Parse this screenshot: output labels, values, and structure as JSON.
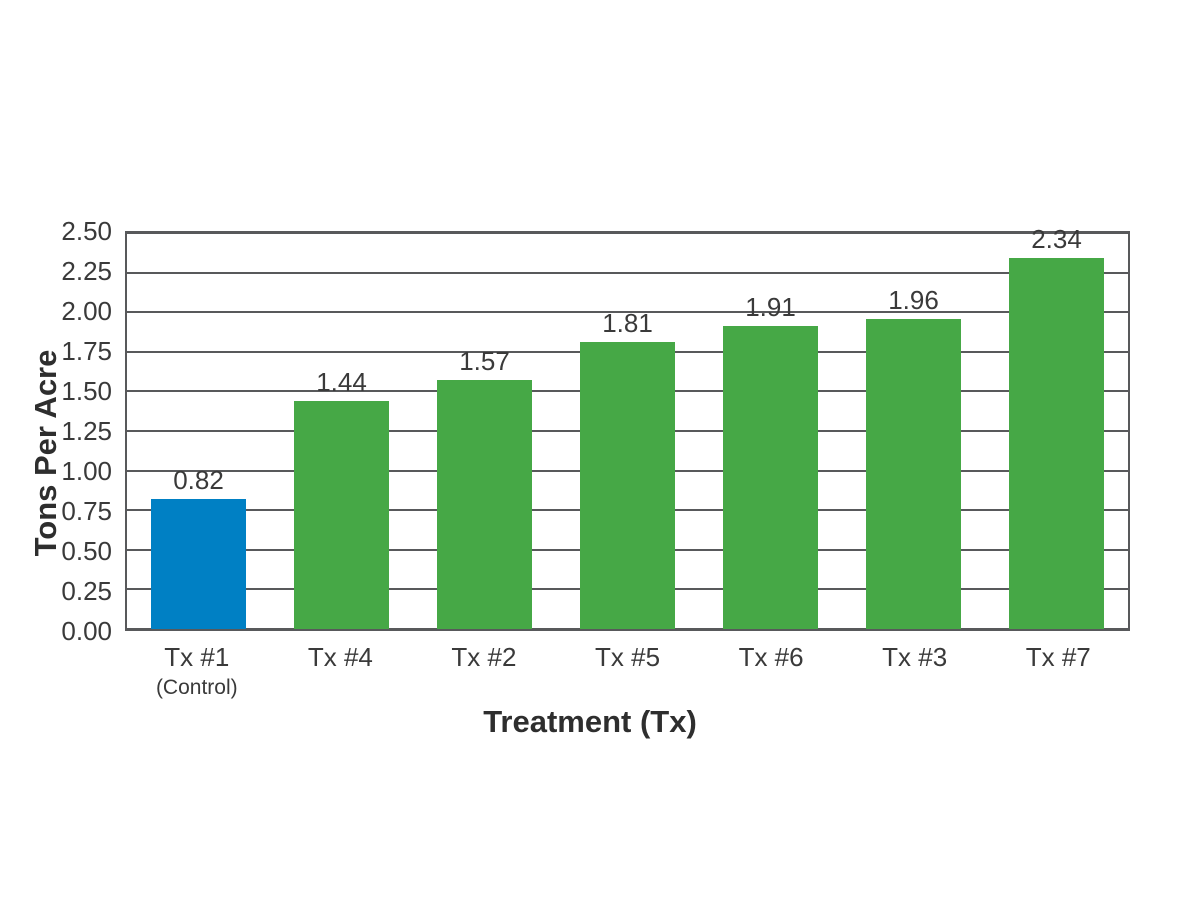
{
  "colors": {
    "bar_green": "#46A846",
    "bar_blue": "#0080C4",
    "grid": "#58595B",
    "tick_text": "#3A3A3A",
    "title_text": "#2E2E2E",
    "background": "#FFFFFF"
  },
  "chart_data": {
    "type": "bar",
    "title": "",
    "xlabel": "Treatment (Tx)",
    "ylabel": "Tons Per Acre",
    "ylim": [
      0,
      2.5
    ],
    "y_tick_step": 0.25,
    "y_tick_labels": [
      "0.00",
      "0.25",
      "0.50",
      "0.75",
      "1.00",
      "1.25",
      "1.50",
      "1.75",
      "2.00",
      "2.25",
      "2.50"
    ],
    "categories": [
      "Tx #1",
      "Tx #4",
      "Tx #2",
      "Tx #5",
      "Tx #6",
      "Tx #3",
      "Tx #7"
    ],
    "category_sublabels": [
      "(Control)",
      "",
      "",
      "",
      "",
      "",
      ""
    ],
    "values": [
      0.82,
      1.44,
      1.57,
      1.81,
      1.91,
      1.96,
      2.34
    ],
    "value_labels": [
      "0.82",
      "1.44",
      "1.57",
      "1.81",
      "1.91",
      "1.96",
      "2.34"
    ],
    "bar_colors": [
      "#0080C4",
      "#46A846",
      "#46A846",
      "#46A846",
      "#46A846",
      "#46A846",
      "#46A846"
    ],
    "grid": true,
    "legend": "none"
  }
}
